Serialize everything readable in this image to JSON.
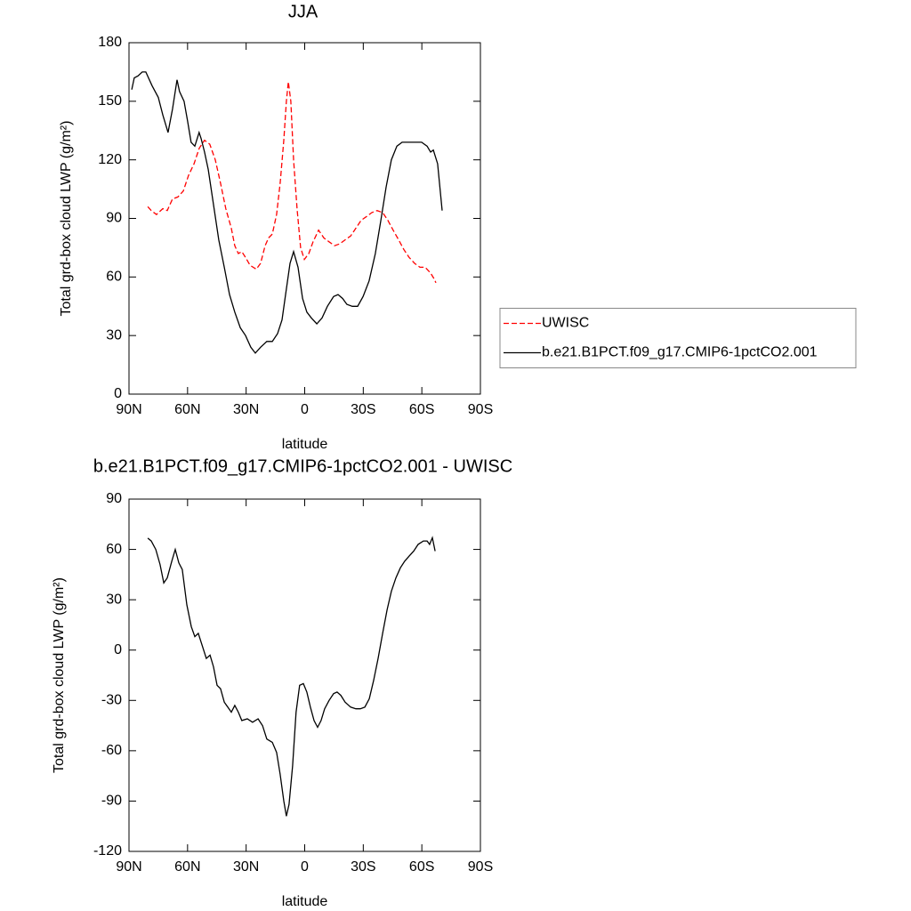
{
  "chart_data": [
    {
      "type": "line",
      "title": "JJA",
      "x_label": "latitude",
      "y_label": "Total grd-box cloud LWP (g/m²)",
      "xlim": [
        90,
        -90
      ],
      "xticks": [
        {
          "value": 90,
          "label": "90N"
        },
        {
          "value": 60,
          "label": "60N"
        },
        {
          "value": 30,
          "label": "30N"
        },
        0,
        {
          "value": -30,
          "label": "30S"
        },
        {
          "value": -60,
          "label": "60S"
        },
        {
          "value": -90,
          "label": "90S"
        }
      ],
      "ylim": [
        0,
        180
      ],
      "yticks": [
        0,
        30,
        60,
        90,
        120,
        150,
        180
      ],
      "legend": "right",
      "series": [
        {
          "name": "UWISC",
          "color": "#ff0000",
          "dash": "dashed",
          "x": [
            80.4,
            78.6,
            75.9,
            72.7,
            70.4,
            67.7,
            65.0,
            62.2,
            59.5,
            56.7,
            54.0,
            51.3,
            48.6,
            45.8,
            43.1,
            40.4,
            37.6,
            35.8,
            34.0,
            32.2,
            30.3,
            28.0,
            24.8,
            22.6,
            20.3,
            18.5,
            16.6,
            14.4,
            12.6,
            10.7,
            9.4,
            8.4,
            7.1,
            5.7,
            3.9,
            2.1,
            0.2,
            -2.1,
            -4.3,
            -7.1,
            -9.8,
            -12.5,
            -15.3,
            -18.0,
            -20.7,
            -23.5,
            -26.2,
            -28.9,
            -31.7,
            -34.4,
            -37.1,
            -39.9,
            -42.6,
            -45.3,
            -48.1,
            -50.8,
            -53.5,
            -56.3,
            -59.0,
            -61.7,
            -64.5,
            -66.3,
            -67.2
          ],
          "values": [
            96,
            94,
            92,
            95,
            94,
            100,
            101,
            104,
            112,
            118,
            126,
            130,
            128,
            120,
            108,
            95,
            85,
            76,
            72,
            73,
            70,
            66,
            64,
            67,
            76,
            80,
            82,
            92,
            108,
            130,
            150,
            160,
            150,
            120,
            95,
            75,
            69,
            72,
            78,
            84,
            80,
            78,
            76,
            77,
            79,
            81,
            85,
            89,
            91,
            93,
            94,
            93,
            89,
            84,
            79,
            74,
            70,
            67,
            65,
            65,
            62,
            59,
            57
          ]
        },
        {
          "name": "b.e21.B1PCT.f09_g17.CMIP6-1pctCO2.001",
          "color": "#000000",
          "dash": "solid",
          "x": [
            88.6,
            87.3,
            85.4,
            83.2,
            81.4,
            78.2,
            75.0,
            72.7,
            70.0,
            67.7,
            65.4,
            64.1,
            61.8,
            60.0,
            58.2,
            56.3,
            54.1,
            53.1,
            51.3,
            49.4,
            46.7,
            44.0,
            41.2,
            38.5,
            35.8,
            33.0,
            30.3,
            27.6,
            25.3,
            22.6,
            19.4,
            16.6,
            13.9,
            11.6,
            9.8,
            7.5,
            5.7,
            3.4,
            1.1,
            -1.1,
            -3.4,
            -6.2,
            -8.9,
            -11.6,
            -14.8,
            -17.1,
            -19.4,
            -21.6,
            -24.4,
            -27.1,
            -29.9,
            -33.0,
            -36.2,
            -39.0,
            -41.7,
            -44.4,
            -47.2,
            -49.9,
            -52.6,
            -56.3,
            -59.9,
            -62.7,
            -64.5,
            -65.9,
            -68.1,
            -70.4
          ],
          "values": [
            156,
            162,
            163,
            165,
            165,
            158,
            152,
            143,
            134,
            146,
            161,
            155,
            150,
            140,
            129,
            127,
            134,
            131,
            124,
            115,
            97,
            79,
            65,
            51,
            42,
            34,
            30,
            24,
            21,
            24,
            27,
            27,
            31,
            38,
            51,
            67,
            73,
            65,
            49,
            42,
            39,
            36,
            39,
            45,
            50,
            51,
            49,
            46,
            45,
            45,
            50,
            58,
            72,
            89,
            106,
            120,
            127,
            129,
            129,
            129,
            129,
            127,
            124,
            125,
            118,
            94
          ]
        }
      ]
    },
    {
      "type": "line",
      "title": "b.e21.B1PCT.f09_g17.CMIP6-1pctCO2.001 - UWISC",
      "x_label": "latitude",
      "y_label": "Total grd-box cloud LWP (g/m²)",
      "xlim": [
        90,
        -90
      ],
      "xticks": [
        {
          "value": 90,
          "label": "90N"
        },
        {
          "value": 60,
          "label": "60N"
        },
        {
          "value": 30,
          "label": "30N"
        },
        0,
        {
          "value": -30,
          "label": "30S"
        },
        {
          "value": -60,
          "label": "60S"
        },
        {
          "value": -90,
          "label": "90S"
        }
      ],
      "ylim": [
        -120,
        90
      ],
      "yticks": [
        -120,
        -90,
        -60,
        -30,
        0,
        30,
        60,
        90
      ],
      "series": [
        {
          "color": "#000000",
          "dash": "solid",
          "x": [
            80.4,
            78.6,
            76.3,
            74.1,
            72.2,
            70.4,
            68.1,
            66.3,
            64.5,
            62.7,
            60.4,
            58.1,
            56.3,
            54.5,
            52.6,
            50.4,
            48.5,
            46.7,
            44.9,
            43.1,
            41.2,
            39.4,
            37.6,
            35.8,
            34.0,
            32.2,
            29.4,
            26.7,
            23.9,
            21.6,
            19.4,
            16.6,
            14.4,
            12.6,
            10.7,
            9.4,
            8.0,
            6.2,
            4.4,
            2.6,
            0.7,
            -1.1,
            -2.9,
            -4.8,
            -6.6,
            -8.4,
            -10.2,
            -12.5,
            -14.8,
            -16.6,
            -18.5,
            -20.7,
            -23.5,
            -26.2,
            -28.5,
            -30.8,
            -33.1,
            -35.3,
            -37.6,
            -39.9,
            -42.2,
            -44.4,
            -46.7,
            -49.0,
            -51.2,
            -53.5,
            -55.8,
            -58.1,
            -60.8,
            -62.7,
            -64.0,
            -65.4,
            -66.8
          ],
          "values": [
            66.7,
            65,
            60,
            51,
            40,
            43,
            53,
            60,
            52,
            48,
            27,
            14,
            8,
            10,
            3,
            -5,
            -3,
            -10,
            -21,
            -23,
            -31,
            -34,
            -37,
            -33,
            -37,
            -42,
            -41,
            -43,
            -41,
            -45,
            -53,
            -55,
            -61,
            -74,
            -90,
            -99,
            -92,
            -69,
            -37,
            -21,
            -20,
            -25,
            -34,
            -42,
            -46,
            -42,
            -35,
            -30,
            -26,
            -25,
            -27,
            -31,
            -34,
            -35,
            -35,
            -34,
            -29,
            -18,
            -5,
            10,
            24,
            35,
            43,
            49,
            53,
            56,
            59,
            63,
            65,
            65,
            63,
            67,
            59
          ]
        }
      ]
    }
  ]
}
